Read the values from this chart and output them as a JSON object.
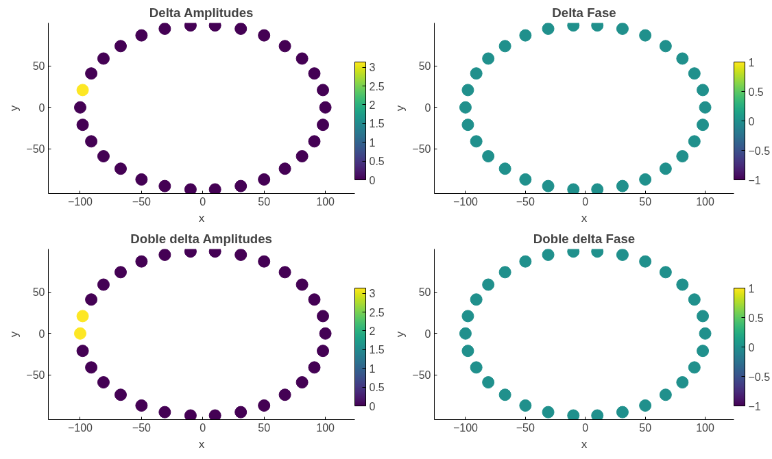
{
  "chart_data": [
    {
      "type": "scatter",
      "title": "Delta Amplitudes",
      "xlabel": "x",
      "ylabel": "y",
      "marker": "circle",
      "grid": false,
      "x": [
        100,
        98,
        91,
        81,
        67,
        50,
        31,
        10,
        -10,
        -31,
        -50,
        -67,
        -81,
        -91,
        -98,
        -100,
        -98,
        -91,
        -81,
        -67,
        -50,
        -31,
        -10,
        10,
        31,
        50,
        67,
        81,
        91,
        98
      ],
      "values": [
        0,
        21,
        41,
        59,
        74,
        87,
        95,
        99,
        99,
        95,
        87,
        74,
        59,
        41,
        21,
        0,
        -21,
        -41,
        -59,
        -74,
        -87,
        -95,
        -99,
        -99,
        -95,
        -87,
        -74,
        -59,
        -41,
        -21
      ],
      "cvalues": [
        0,
        0,
        0,
        0,
        0,
        0,
        0,
        0,
        0,
        0,
        0,
        0,
        0,
        0,
        3.14,
        0,
        0,
        0,
        0,
        0,
        0,
        0,
        0,
        0,
        0,
        0,
        0,
        0,
        0,
        0
      ],
      "clim": [
        0,
        3.14
      ],
      "cticks": [
        0,
        0.5,
        1,
        1.5,
        2,
        2.5,
        3
      ],
      "xlim": [
        -126,
        124
      ],
      "ylim": [
        -104,
        102
      ],
      "xticks": [
        -100,
        -50,
        0,
        50,
        100
      ],
      "yticks": [
        -50,
        0,
        50
      ]
    },
    {
      "type": "scatter",
      "title": "Delta Fase",
      "xlabel": "x",
      "ylabel": "y",
      "marker": "circle",
      "grid": false,
      "x": [
        100,
        98,
        91,
        81,
        67,
        50,
        31,
        10,
        -10,
        -31,
        -50,
        -67,
        -81,
        -91,
        -98,
        -100,
        -98,
        -91,
        -81,
        -67,
        -50,
        -31,
        -10,
        10,
        31,
        50,
        67,
        81,
        91,
        98
      ],
      "values": [
        0,
        21,
        41,
        59,
        74,
        87,
        95,
        99,
        99,
        95,
        87,
        74,
        59,
        41,
        21,
        0,
        -21,
        -41,
        -59,
        -74,
        -87,
        -95,
        -99,
        -99,
        -95,
        -87,
        -74,
        -59,
        -41,
        -21
      ],
      "cvalues": [
        0,
        0,
        0,
        0,
        0,
        0,
        0,
        0,
        0,
        0,
        0,
        0,
        0,
        0,
        0,
        0,
        0,
        0,
        0,
        0,
        0,
        0,
        0,
        0,
        0,
        0,
        0,
        0,
        0,
        0
      ],
      "clim": [
        -1,
        1
      ],
      "cticks": [
        -1,
        -0.5,
        0,
        0.5,
        1
      ],
      "xlim": [
        -126,
        124
      ],
      "ylim": [
        -104,
        102
      ],
      "xticks": [
        -100,
        -50,
        0,
        50,
        100
      ],
      "yticks": [
        -50,
        0,
        50
      ]
    },
    {
      "type": "scatter",
      "title": "Doble delta Amplitudes",
      "xlabel": "x",
      "ylabel": "y",
      "marker": "circle",
      "grid": false,
      "x": [
        100,
        98,
        91,
        81,
        67,
        50,
        31,
        10,
        -10,
        -31,
        -50,
        -67,
        -81,
        -91,
        -98,
        -100,
        -98,
        -91,
        -81,
        -67,
        -50,
        -31,
        -10,
        10,
        31,
        50,
        67,
        81,
        91,
        98
      ],
      "values": [
        0,
        21,
        41,
        59,
        74,
        87,
        95,
        99,
        99,
        95,
        87,
        74,
        59,
        41,
        21,
        0,
        -21,
        -41,
        -59,
        -74,
        -87,
        -95,
        -99,
        -99,
        -95,
        -87,
        -74,
        -59,
        -41,
        -21
      ],
      "cvalues": [
        0,
        0,
        0,
        0,
        0,
        0,
        0,
        0,
        0,
        0,
        0,
        0,
        0,
        0,
        3.14,
        3.14,
        0,
        0,
        0,
        0,
        0,
        0,
        0,
        0,
        0,
        0,
        0,
        0,
        0,
        0
      ],
      "clim": [
        0,
        3.14
      ],
      "cticks": [
        0,
        0.5,
        1,
        1.5,
        2,
        2.5,
        3
      ],
      "xlim": [
        -126,
        124
      ],
      "ylim": [
        -104,
        102
      ],
      "xticks": [
        -100,
        -50,
        0,
        50,
        100
      ],
      "yticks": [
        -50,
        0,
        50
      ]
    },
    {
      "type": "scatter",
      "title": "Doble delta Fase",
      "xlabel": "x",
      "ylabel": "y",
      "marker": "circle",
      "grid": false,
      "x": [
        100,
        98,
        91,
        81,
        67,
        50,
        31,
        10,
        -10,
        -31,
        -50,
        -67,
        -81,
        -91,
        -98,
        -100,
        -98,
        -91,
        -81,
        -67,
        -50,
        -31,
        -10,
        10,
        31,
        50,
        67,
        81,
        91,
        98
      ],
      "values": [
        0,
        21,
        41,
        59,
        74,
        87,
        95,
        99,
        99,
        95,
        87,
        74,
        59,
        41,
        21,
        0,
        -21,
        -41,
        -59,
        -74,
        -87,
        -95,
        -99,
        -99,
        -95,
        -87,
        -74,
        -59,
        -41,
        -21
      ],
      "cvalues": [
        0,
        0,
        0,
        0,
        0,
        0,
        0,
        0,
        0,
        0,
        0,
        0,
        0,
        0,
        0,
        0,
        0,
        0,
        0,
        0,
        0,
        0,
        0,
        0,
        0,
        0,
        0,
        0,
        0,
        0
      ],
      "clim": [
        -1,
        1
      ],
      "cticks": [
        -1,
        -0.5,
        0,
        0.5,
        1
      ],
      "xlim": [
        -126,
        124
      ],
      "ylim": [
        -104,
        102
      ],
      "xticks": [
        -100,
        -50,
        0,
        50,
        100
      ],
      "yticks": [
        -50,
        0,
        50
      ]
    }
  ]
}
